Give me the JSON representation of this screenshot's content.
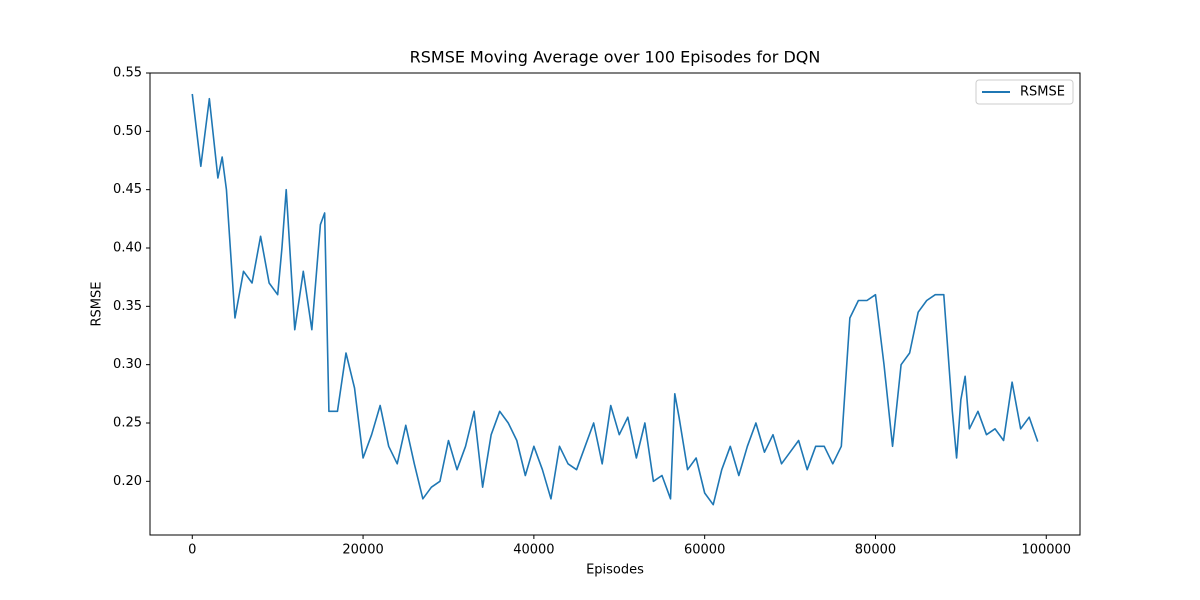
{
  "chart_data": {
    "type": "line",
    "title": "RSMSE Moving Average over 100 Episodes for DQN",
    "x_label": "Episodes",
    "y_label": "RSMSE",
    "x": [
      0,
      1000,
      2000,
      3000,
      3500,
      4000,
      5000,
      6000,
      7000,
      8000,
      9000,
      10000,
      10500,
      11000,
      12000,
      13000,
      14000,
      15000,
      15500,
      16000,
      17000,
      18000,
      19000,
      20000,
      21000,
      22000,
      23000,
      24000,
      25000,
      26000,
      27000,
      28000,
      29000,
      30000,
      31000,
      32000,
      33000,
      34000,
      35000,
      36000,
      37000,
      38000,
      39000,
      40000,
      41000,
      42000,
      43000,
      44000,
      45000,
      46000,
      47000,
      48000,
      49000,
      50000,
      51000,
      52000,
      53000,
      54000,
      55000,
      56000,
      56500,
      57000,
      58000,
      59000,
      60000,
      61000,
      62000,
      63000,
      64000,
      65000,
      66000,
      67000,
      68000,
      69000,
      70000,
      71000,
      72000,
      73000,
      74000,
      75000,
      76000,
      77000,
      78000,
      79000,
      80000,
      81000,
      82000,
      83000,
      84000,
      85000,
      86000,
      87000,
      88000,
      89000,
      89500,
      90000,
      90500,
      91000,
      92000,
      93000,
      94000,
      95000,
      96000,
      97000,
      98000,
      99000
    ],
    "series": [
      {
        "name": "RSMSE",
        "color": "#1f77b4",
        "values": [
          0.532,
          0.47,
          0.528,
          0.46,
          0.478,
          0.45,
          0.34,
          0.38,
          0.37,
          0.41,
          0.37,
          0.36,
          0.4,
          0.45,
          0.33,
          0.38,
          0.33,
          0.42,
          0.43,
          0.26,
          0.26,
          0.31,
          0.28,
          0.22,
          0.24,
          0.265,
          0.23,
          0.215,
          0.248,
          0.215,
          0.185,
          0.195,
          0.2,
          0.235,
          0.21,
          0.23,
          0.26,
          0.195,
          0.24,
          0.26,
          0.25,
          0.235,
          0.205,
          0.23,
          0.21,
          0.185,
          0.23,
          0.215,
          0.21,
          0.23,
          0.25,
          0.215,
          0.265,
          0.24,
          0.255,
          0.22,
          0.25,
          0.2,
          0.205,
          0.185,
          0.275,
          0.255,
          0.21,
          0.22,
          0.19,
          0.18,
          0.21,
          0.23,
          0.205,
          0.23,
          0.25,
          0.225,
          0.24,
          0.215,
          0.225,
          0.235,
          0.21,
          0.23,
          0.23,
          0.215,
          0.23,
          0.34,
          0.355,
          0.355,
          0.36,
          0.3,
          0.23,
          0.3,
          0.31,
          0.345,
          0.355,
          0.36,
          0.36,
          0.26,
          0.22,
          0.27,
          0.29,
          0.245,
          0.26,
          0.24,
          0.245,
          0.235,
          0.285,
          0.245,
          0.255,
          0.234
        ]
      }
    ],
    "xlim": [
      -4950,
      103950
    ],
    "ylim": [
      0.154,
      0.55
    ],
    "xticks": [
      0,
      20000,
      40000,
      60000,
      80000,
      100000
    ],
    "yticks": [
      {
        "value": 0.2,
        "label": "0.20"
      },
      0.25,
      {
        "value": 0.3,
        "label": "0.30"
      },
      0.35,
      {
        "value": 0.4,
        "label": "0.40"
      },
      0.45,
      {
        "value": 0.5,
        "label": "0.50"
      },
      0.55
    ],
    "legend": "upper right"
  }
}
